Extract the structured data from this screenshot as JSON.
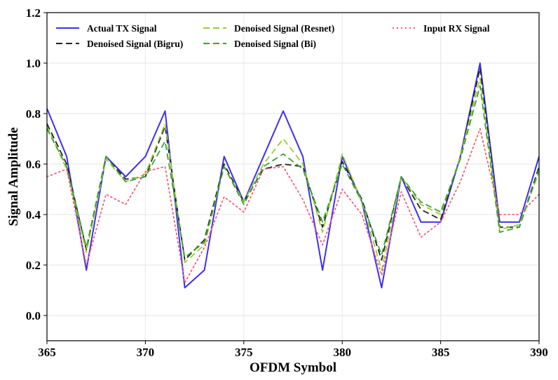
{
  "chart_data": {
    "type": "line",
    "title": "",
    "xlabel": "OFDM Symbol",
    "ylabel": "Signal Amplitude",
    "xlim": [
      365,
      390
    ],
    "ylim": [
      -0.1,
      1.2
    ],
    "xticks": [
      "365",
      "370",
      "375",
      "380",
      "385",
      "390"
    ],
    "yticks": [
      "0.0",
      "0.2",
      "0.4",
      "0.6",
      "0.8",
      "1.0",
      "1.2"
    ],
    "grid": true,
    "legend_position": "top",
    "x": [
      365,
      366,
      367,
      368,
      369,
      370,
      371,
      372,
      373,
      374,
      375,
      376,
      377,
      378,
      379,
      380,
      381,
      382,
      383,
      384,
      385,
      386,
      387,
      388,
      389,
      390
    ],
    "series": [
      {
        "name": "Actual TX Signal",
        "color": "#3f2ff0",
        "dash": "solid",
        "values": [
          0.82,
          0.63,
          0.18,
          0.63,
          0.55,
          0.63,
          0.81,
          0.11,
          0.18,
          0.63,
          0.45,
          0.63,
          0.81,
          0.63,
          0.18,
          0.63,
          0.45,
          0.11,
          0.55,
          0.37,
          0.37,
          0.63,
          1.0,
          0.37,
          0.37,
          0.63
        ]
      },
      {
        "name": "Denoised Signal (Bigru)",
        "color": "#222222",
        "dash": "dashed",
        "values": [
          0.76,
          0.6,
          0.26,
          0.63,
          0.54,
          0.55,
          0.75,
          0.22,
          0.3,
          0.6,
          0.45,
          0.58,
          0.6,
          0.59,
          0.35,
          0.61,
          0.46,
          0.22,
          0.55,
          0.42,
          0.38,
          0.63,
          0.98,
          0.35,
          0.35,
          0.59
        ]
      },
      {
        "name": "Denoised Signal (Resnet)",
        "color": "#9acd32",
        "dash": "dashed",
        "values": [
          0.75,
          0.58,
          0.25,
          0.62,
          0.53,
          0.56,
          0.76,
          0.21,
          0.28,
          0.59,
          0.45,
          0.6,
          0.7,
          0.6,
          0.33,
          0.64,
          0.45,
          0.18,
          0.55,
          0.44,
          0.4,
          0.63,
          0.94,
          0.34,
          0.36,
          0.57
        ]
      },
      {
        "name": "Denoised Signal (Bi)",
        "color": "#3aa336",
        "dash": "dashed",
        "values": [
          0.74,
          0.59,
          0.27,
          0.63,
          0.53,
          0.55,
          0.69,
          0.23,
          0.29,
          0.59,
          0.44,
          0.59,
          0.64,
          0.58,
          0.37,
          0.6,
          0.45,
          0.24,
          0.55,
          0.45,
          0.41,
          0.62,
          0.91,
          0.33,
          0.35,
          0.58
        ]
      },
      {
        "name": "Input RX Signal",
        "color": "#f0607a",
        "dash": "dotted",
        "values": [
          0.55,
          0.58,
          0.2,
          0.48,
          0.44,
          0.57,
          0.59,
          0.13,
          0.27,
          0.47,
          0.41,
          0.58,
          0.59,
          0.46,
          0.28,
          0.5,
          0.4,
          0.16,
          0.49,
          0.31,
          0.37,
          0.53,
          0.74,
          0.4,
          0.4,
          0.48
        ]
      }
    ]
  }
}
